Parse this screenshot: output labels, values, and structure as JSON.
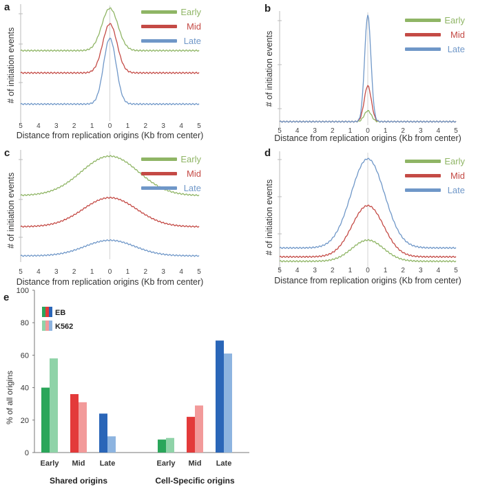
{
  "panels": {
    "a": {
      "letter": "a"
    },
    "b": {
      "letter": "b"
    },
    "c": {
      "letter": "c"
    },
    "d": {
      "letter": "d"
    },
    "e": {
      "letter": "e"
    }
  },
  "colors": {
    "early": "#8fb565",
    "mid": "#c44a45",
    "late": "#6f97c8",
    "eb_green": "#2aa65a",
    "eb_red": "#e33a3a",
    "eb_blue": "#2a66b8",
    "k562_green": "#8fd3a8",
    "k562_red": "#f29a9a",
    "k562_blue": "#8db4e0"
  },
  "chart_data": [
    {
      "id": "a",
      "type": "line",
      "ylabel": "# of initiation events",
      "xlabel": "Distance from replication origins (Kb from center)",
      "x_ticks": [
        "5",
        "4",
        "3",
        "2",
        "1",
        "0",
        "1",
        "2",
        "3",
        "4",
        "5"
      ],
      "x_range": [
        -5,
        5
      ],
      "legend": [
        "Early",
        "Mid",
        "Late"
      ],
      "series": [
        {
          "name": "Early",
          "baseline": 0.62,
          "peak": 1.0,
          "width": 0.45
        },
        {
          "name": "Mid",
          "baseline": 0.42,
          "peak": 0.86,
          "width": 0.4
        },
        {
          "name": "Late",
          "baseline": 0.14,
          "peak": 0.73,
          "width": 0.35
        }
      ]
    },
    {
      "id": "b",
      "type": "line",
      "ylabel": "# of initiation events",
      "xlabel": "Distance from replication origins (Kb from center)",
      "x_ticks": [
        "5",
        "4",
        "3",
        "2",
        "1",
        "0",
        "1",
        "2",
        "3",
        "4",
        "5"
      ],
      "x_range": [
        -5,
        5
      ],
      "legend": [
        "Early",
        "Mid",
        "Late"
      ],
      "series": [
        {
          "name": "Early",
          "baseline": 0.02,
          "peak": 0.12,
          "width": 0.2
        },
        {
          "name": "Mid",
          "baseline": 0.02,
          "peak": 0.35,
          "width": 0.2
        },
        {
          "name": "Late",
          "baseline": 0.02,
          "peak": 1.0,
          "width": 0.18
        }
      ]
    },
    {
      "id": "c",
      "type": "line",
      "ylabel": "# of initiation events",
      "xlabel": "Distance from replication origins (Kb from center)",
      "x_ticks": [
        "5",
        "4",
        "3",
        "2",
        "1",
        "0",
        "1",
        "2",
        "3",
        "4",
        "5"
      ],
      "x_range": [
        -5,
        5
      ],
      "legend": [
        "Early",
        "Mid",
        "Late"
      ],
      "series": [
        {
          "name": "Early",
          "baseline": 0.6,
          "peak": 0.98,
          "width": 1.6
        },
        {
          "name": "Mid",
          "baseline": 0.3,
          "peak": 0.58,
          "width": 1.5
        },
        {
          "name": "Late",
          "baseline": 0.02,
          "peak": 0.17,
          "width": 1.4
        }
      ]
    },
    {
      "id": "d",
      "type": "line",
      "ylabel": "# of initiation events",
      "xlabel": "Distance from replication origins (Kb from center)",
      "x_ticks": [
        "5",
        "4",
        "3",
        "2",
        "1",
        "0",
        "1",
        "2",
        "3",
        "4",
        "5"
      ],
      "x_range": [
        -5,
        5
      ],
      "legend": [
        "Early",
        "Mid",
        "Late"
      ],
      "series": [
        {
          "name": "Early",
          "baseline": 0.05,
          "peak": 0.24,
          "width": 0.9
        },
        {
          "name": "Mid",
          "baseline": 0.09,
          "peak": 0.55,
          "width": 0.9
        },
        {
          "name": "Late",
          "baseline": 0.17,
          "peak": 0.97,
          "width": 0.95
        }
      ]
    },
    {
      "id": "e",
      "type": "bar",
      "ylabel": "% of all origins",
      "ylim": [
        0,
        100
      ],
      "yticks": [
        "0",
        "20",
        "40",
        "60",
        "80",
        "100"
      ],
      "legend": [
        "EB",
        "K562"
      ],
      "groups": [
        {
          "name": "Shared origins",
          "categories": [
            "Early",
            "Mid",
            "Late"
          ],
          "EB": [
            40,
            36,
            24
          ],
          "K562": [
            58,
            31,
            10
          ]
        },
        {
          "name": "Cell-Specific origins",
          "categories": [
            "Early",
            "Mid",
            "Late"
          ],
          "EB": [
            8,
            22,
            69
          ],
          "K562": [
            9,
            29,
            61
          ]
        }
      ]
    }
  ]
}
